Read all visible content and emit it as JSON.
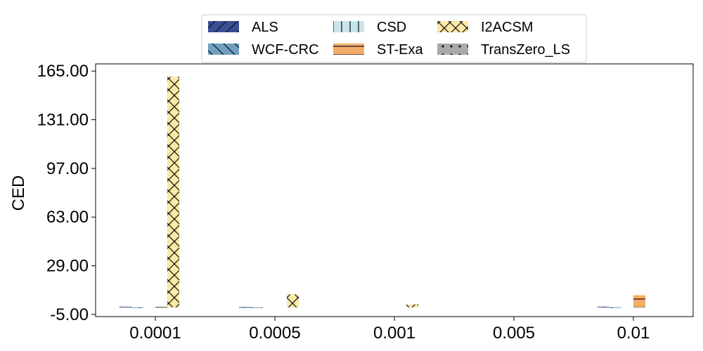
{
  "chart_data": {
    "type": "bar",
    "title": "",
    "xlabel": "",
    "ylabel": "CED",
    "categories": [
      "0.0001",
      "0.0005",
      "0.001",
      "0.005",
      "0.01"
    ],
    "y_ticks": [
      "-5.00",
      "29.00",
      "63.00",
      "97.00",
      "131.00",
      "165.00"
    ],
    "ylim": [
      -6.5,
      170
    ],
    "grid": false,
    "legend_location": "top-center",
    "series": [
      {
        "name": "ALS",
        "color": "#3a4e96",
        "hatch": "/",
        "values": [
          0.4,
          0.15,
          0.0,
          0.0,
          0.4
        ]
      },
      {
        "name": "WCF-CRC",
        "color": "#6fa0c0",
        "hatch": "\\",
        "values": [
          -0.4,
          -0.35,
          0.0,
          0.0,
          -0.5
        ]
      },
      {
        "name": "CSD",
        "color": "#c7e4ea",
        "hatch": "|",
        "values": [
          0.0,
          0.0,
          0.0,
          0.0,
          0.0
        ]
      },
      {
        "name": "ST-Exa",
        "color": "#f2ad6a",
        "hatch": "-",
        "values": [
          0.3,
          0.0,
          0.0,
          0.0,
          8.4
        ]
      },
      {
        "name": "I2ACSM",
        "color": "#fbe9a6",
        "hatch": "x",
        "values": [
          161.0,
          9.0,
          2.0,
          0.0,
          0.0
        ]
      },
      {
        "name": "TransZero_LS",
        "color": "#aaaaaa",
        "hatch": ".",
        "values": [
          0.0,
          0.0,
          0.0,
          0.0,
          0.0
        ]
      }
    ]
  }
}
